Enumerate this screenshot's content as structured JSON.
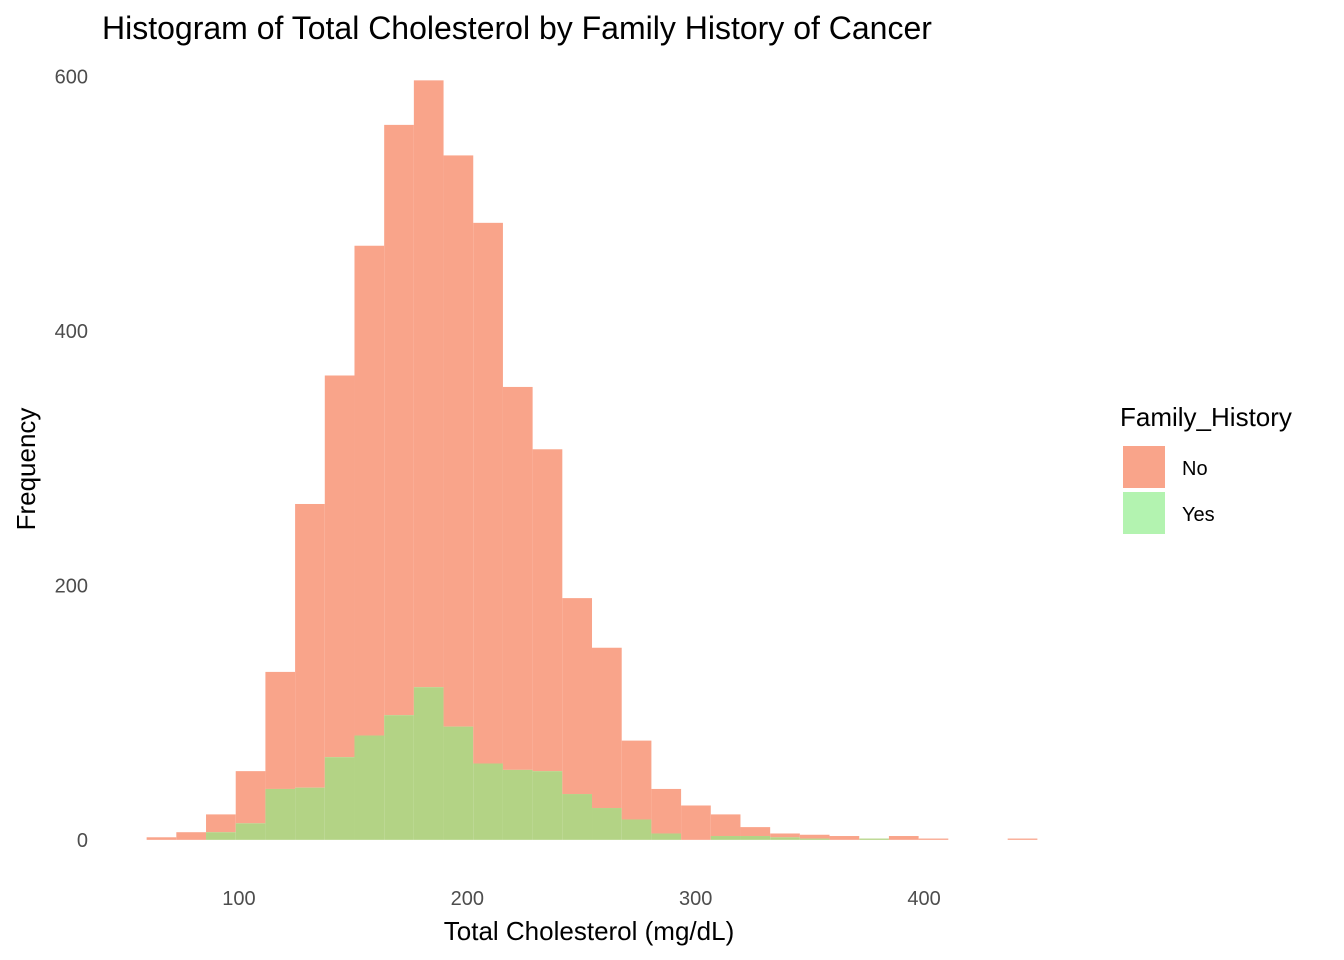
{
  "chart_data": {
    "type": "histogram",
    "title": "Histogram of Total Cholesterol by Family History of Cancer",
    "xlabel": "Total Cholesterol (mg/dL)",
    "ylabel": "Frequency",
    "xlim": [
      51,
      456
    ],
    "ylim": [
      -30,
      613
    ],
    "x_ticks": [
      100,
      200,
      300,
      400
    ],
    "y_ticks": [
      0,
      200,
      400,
      600
    ],
    "grid": false,
    "position": "identity (overlaid)",
    "bin_edges": [
      59.6,
      72.6,
      85.6,
      98.6,
      111.6,
      124.6,
      137.6,
      150.6,
      163.6,
      176.6,
      189.6,
      202.6,
      215.6,
      228.6,
      241.6,
      254.6,
      267.6,
      280.6,
      293.6,
      306.6,
      319.6,
      332.6,
      345.6,
      358.6,
      371.6,
      384.6,
      397.6,
      410.6,
      423.6,
      436.6,
      449.6
    ],
    "legend": {
      "title": "Family_History",
      "placement": "right"
    },
    "series": [
      {
        "name": "No",
        "color": "#f9a48a",
        "values": [
          2,
          6,
          20,
          54,
          132,
          264,
          365,
          467,
          562,
          597,
          538,
          485,
          356,
          307,
          190,
          151,
          78,
          40,
          27,
          20,
          10,
          5,
          4,
          3,
          1,
          3,
          1,
          0,
          0,
          1
        ]
      },
      {
        "name": "Yes",
        "color": "#b3f3b0",
        "values": [
          0,
          0,
          6,
          13,
          40,
          41,
          65,
          82,
          98,
          120,
          89,
          60,
          55,
          54,
          36,
          25,
          16,
          5,
          0,
          3,
          3,
          2,
          1,
          0,
          1,
          0,
          0,
          0,
          0,
          0
        ]
      }
    ],
    "overlap_color": "#b3d385"
  }
}
